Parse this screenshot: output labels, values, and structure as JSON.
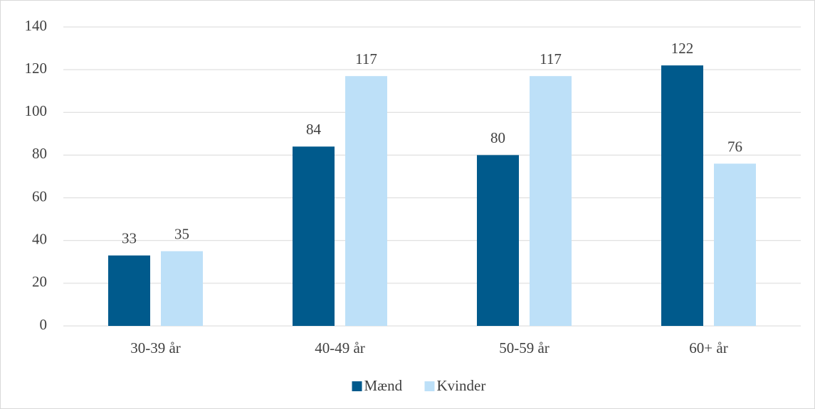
{
  "chart_data": {
    "type": "bar",
    "categories": [
      "30-39 år",
      "40-49 år",
      "50-59 år",
      "60+ år"
    ],
    "series": [
      {
        "name": "Mænd",
        "color": "#005a8c",
        "values": [
          33,
          84,
          80,
          122
        ]
      },
      {
        "name": "Kvinder",
        "color": "#bde0f8",
        "values": [
          35,
          117,
          117,
          76
        ]
      }
    ],
    "ylim": [
      0,
      140
    ],
    "yticks": [
      0,
      20,
      40,
      60,
      80,
      100,
      120,
      140
    ],
    "grid": true,
    "legend": "bottom"
  }
}
